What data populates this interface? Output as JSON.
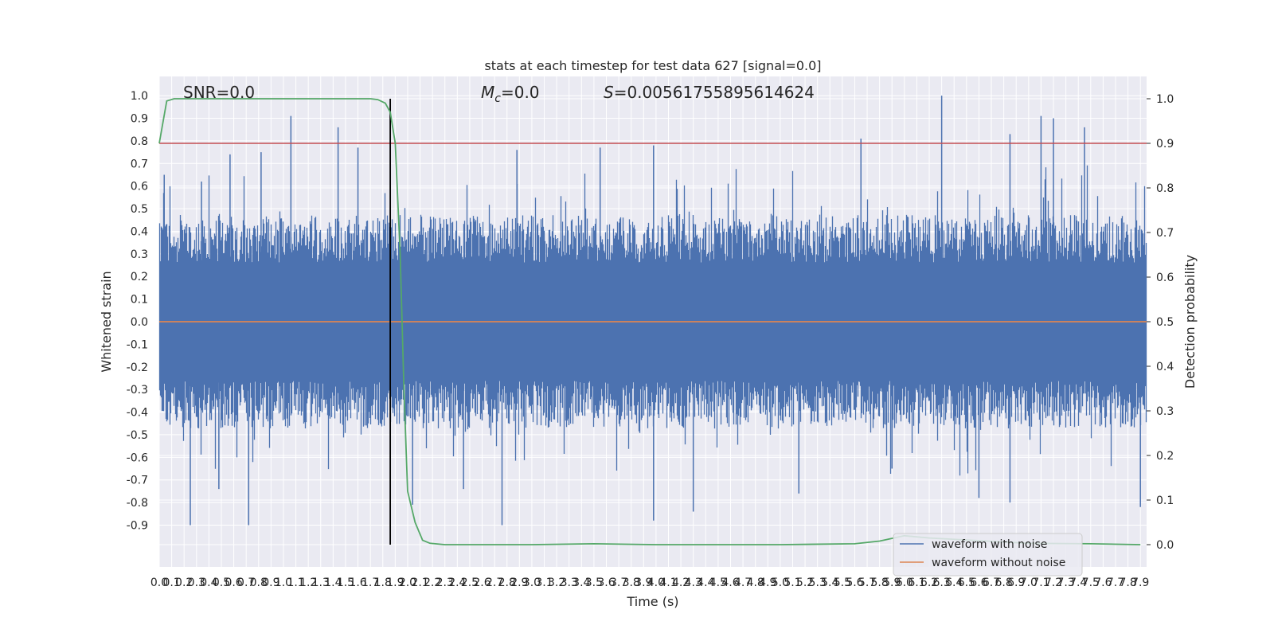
{
  "chart_data": {
    "type": "line",
    "title": "stats at each timestep for test data 627 [signal=0.0]",
    "annotations": {
      "snr": "SNR=0.0",
      "mc_symbol": "M",
      "mc_sub": "c",
      "mc_value": "=0.0",
      "s_symbol": "S",
      "s_value": "=0.00561755895614624"
    },
    "xlabel": "Time (s)",
    "ylabel": "Whitened strain",
    "ylabel_right": "Detection probability",
    "xlim": [
      0.0,
      7.95
    ],
    "ylim": [
      -1.085,
      1.085
    ],
    "ylim_right": [
      -0.05,
      1.05
    ],
    "x_tick_start": 0.0,
    "x_tick_step": 0.1,
    "x_tick_count": 80,
    "y_ticks": [
      -0.9,
      -0.8,
      -0.7,
      -0.6,
      -0.5,
      -0.4,
      -0.3,
      -0.2,
      -0.1,
      0.0,
      0.1,
      0.2,
      0.3,
      0.4,
      0.5,
      0.6,
      0.7,
      0.8,
      0.9,
      1.0
    ],
    "y_ticks_right": [
      0.0,
      0.1,
      0.2,
      0.3,
      0.4,
      0.5,
      0.6,
      0.7,
      0.8,
      0.9,
      1.0
    ],
    "threshold": 0.9,
    "marker_time": 1.86,
    "grid": true,
    "series": [
      {
        "name": "waveform with noise",
        "color": "#4c72b0",
        "typical_amplitude": 0.35,
        "peak_samples": [
          {
            "x": 0.04,
            "y": 0.65
          },
          {
            "x": 0.25,
            "y": -0.9
          },
          {
            "x": 0.34,
            "y": 0.62
          },
          {
            "x": 0.48,
            "y": -0.74
          },
          {
            "x": 0.57,
            "y": 0.74
          },
          {
            "x": 0.72,
            "y": -0.9
          },
          {
            "x": 0.82,
            "y": 0.75
          },
          {
            "x": 1.06,
            "y": 0.91
          },
          {
            "x": 1.44,
            "y": 0.86
          },
          {
            "x": 1.6,
            "y": 0.77
          },
          {
            "x": 2.04,
            "y": -0.81
          },
          {
            "x": 2.45,
            "y": -0.74
          },
          {
            "x": 2.76,
            "y": -0.9
          },
          {
            "x": 2.88,
            "y": 0.76
          },
          {
            "x": 3.55,
            "y": 0.77
          },
          {
            "x": 3.98,
            "y": 0.78
          },
          {
            "x": 3.98,
            "y": -0.88
          },
          {
            "x": 4.3,
            "y": -0.84
          },
          {
            "x": 5.15,
            "y": -0.76
          },
          {
            "x": 5.65,
            "y": 0.81
          },
          {
            "x": 5.9,
            "y": -0.65
          },
          {
            "x": 6.3,
            "y": 1.0
          },
          {
            "x": 6.6,
            "y": -0.78
          },
          {
            "x": 6.85,
            "y": -0.8
          },
          {
            "x": 6.85,
            "y": 0.83
          },
          {
            "x": 7.1,
            "y": 0.91
          },
          {
            "x": 7.2,
            "y": 0.9
          },
          {
            "x": 7.45,
            "y": 0.86
          },
          {
            "x": 7.9,
            "y": -0.82
          }
        ]
      },
      {
        "name": "waveform without noise",
        "color": "#dd8452",
        "x": [
          0.0,
          7.95
        ],
        "y": [
          0.0,
          0.0
        ]
      },
      {
        "name": "detection probability",
        "color": "#55a868",
        "axis": "right",
        "x": [
          0.0,
          0.06,
          0.12,
          0.3,
          1.0,
          1.7,
          1.76,
          1.82,
          1.86,
          1.9,
          1.94,
          1.97,
          2.0,
          2.06,
          2.12,
          2.18,
          2.3,
          3.0,
          3.5,
          4.0,
          5.0,
          5.6,
          5.8,
          6.0,
          6.2,
          7.0,
          7.5,
          7.9
        ],
        "y": [
          0.9,
          0.995,
          1.0,
          1.0,
          1.0,
          1.0,
          0.998,
          0.99,
          0.97,
          0.9,
          0.65,
          0.35,
          0.12,
          0.05,
          0.01,
          0.003,
          0.0,
          0.0,
          0.002,
          0.0,
          0.0,
          0.002,
          0.008,
          0.02,
          0.015,
          0.003,
          0.002,
          0.0
        ]
      }
    ],
    "legend_placement": "lower right",
    "colors": {
      "background": "#eaeaf2",
      "grid": "#ffffff",
      "threshold": "#c44e52",
      "marker": "#000000"
    }
  }
}
